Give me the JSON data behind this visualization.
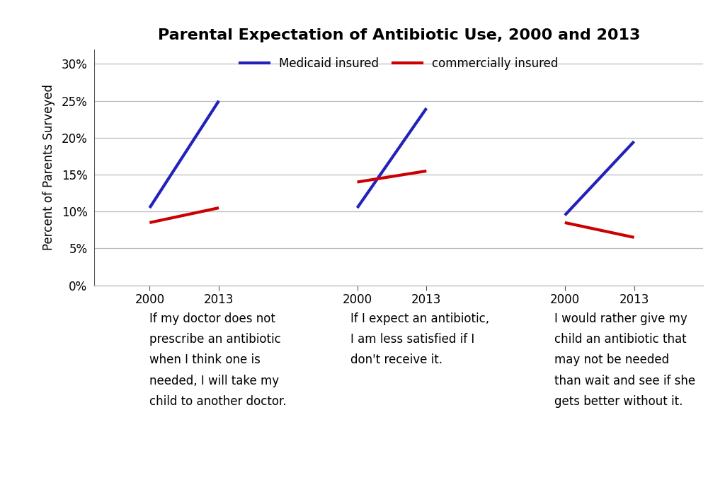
{
  "title": "Parental Expectation of Antibiotic Use, 2000 and 2013",
  "ylabel": "Percent of Parents Surveyed",
  "background_color": "#ffffff",
  "grid_color": "#bbbbbb",
  "spine_color": "#555555",
  "ylim": [
    0,
    32
  ],
  "yticks": [
    0,
    5,
    10,
    15,
    20,
    25,
    30
  ],
  "ytick_labels": [
    "0%",
    "5%",
    "10%",
    "15%",
    "20%",
    "25%",
    "30%"
  ],
  "series": [
    {
      "name": "Medicaid insured",
      "color": "#2222bb",
      "linewidth": 3.0,
      "groups": [
        {
          "x": [
            1,
            2
          ],
          "y": [
            10.5,
            25.0
          ]
        },
        {
          "x": [
            4,
            5
          ],
          "y": [
            10.5,
            24.0
          ]
        },
        {
          "x": [
            7,
            8
          ],
          "y": [
            9.5,
            19.5
          ]
        }
      ]
    },
    {
      "name": "commercially insured",
      "color": "#cc0000",
      "linewidth": 3.0,
      "groups": [
        {
          "x": [
            1,
            2
          ],
          "y": [
            8.5,
            10.5
          ]
        },
        {
          "x": [
            4,
            5
          ],
          "y": [
            14.0,
            15.5
          ]
        },
        {
          "x": [
            7,
            8
          ],
          "y": [
            8.5,
            6.5
          ]
        }
      ]
    }
  ],
  "xtick_positions": [
    1,
    2,
    4,
    5,
    7,
    8
  ],
  "xtick_labels": [
    "2000",
    "2013",
    "2000",
    "2013",
    "2000",
    "2013"
  ],
  "xlim": [
    0.2,
    9.0
  ],
  "group_text": [
    {
      "x": 1.0,
      "align": "left",
      "lines": [
        "If my doctor does not",
        "prescribe an antibiotic",
        "when I think one is",
        "needed, I will take my",
        "child to another doctor."
      ]
    },
    {
      "x": 3.9,
      "align": "left",
      "lines": [
        "If I expect an antibiotic,",
        "I am less satisfied if I",
        "don't receive it."
      ]
    },
    {
      "x": 6.85,
      "align": "left",
      "lines": [
        "I would rather give my",
        "child an antibiotic that",
        "may not be needed",
        "than wait and see if she",
        "gets better without it."
      ]
    }
  ],
  "title_fontsize": 16,
  "label_fontsize": 12,
  "tick_fontsize": 12,
  "legend_fontsize": 12,
  "annotation_fontsize": 12
}
